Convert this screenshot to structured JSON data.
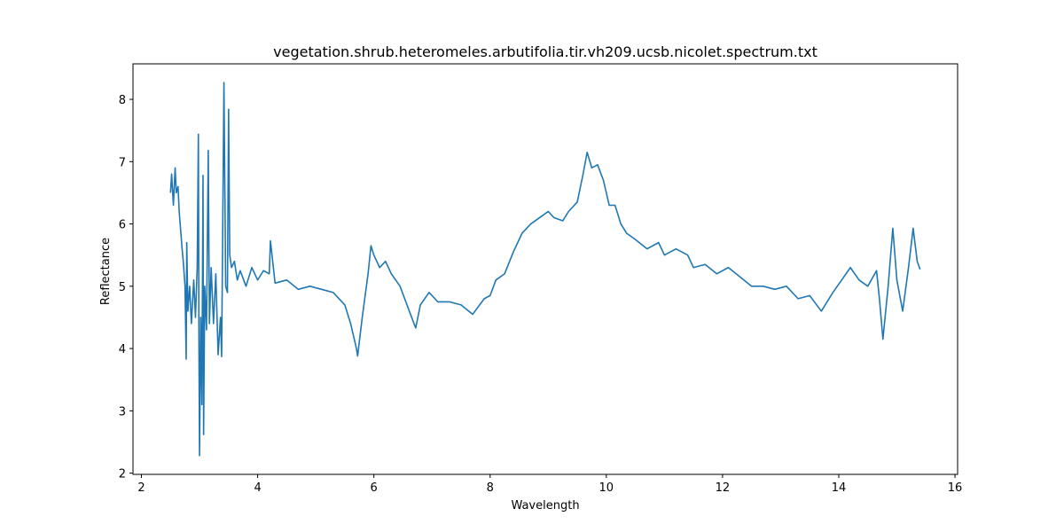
{
  "chart_data": {
    "type": "line",
    "title": "vegetation.shrub.heteromeles.arbutifolia.tir.vh209.ucsb.nicolet.spectrum.txt",
    "x_label": "Wavelength",
    "y_label": "Reflectance",
    "x": [
      2.5,
      2.52,
      2.55,
      2.58,
      2.6,
      2.63,
      2.65,
      2.7,
      2.72,
      2.75,
      2.77,
      2.78,
      2.8,
      2.83,
      2.86,
      2.9,
      2.93,
      2.96,
      2.98,
      2.99,
      3.0,
      3.02,
      3.04,
      3.06,
      3.07,
      3.09,
      3.12,
      3.15,
      3.17,
      3.2,
      3.24,
      3.28,
      3.32,
      3.36,
      3.38,
      3.42,
      3.45,
      3.48,
      3.5,
      3.52,
      3.55,
      3.6,
      3.65,
      3.7,
      3.8,
      3.9,
      4.0,
      4.1,
      4.2,
      4.22,
      4.3,
      4.5,
      4.7,
      4.9,
      5.1,
      5.3,
      5.5,
      5.6,
      5.7,
      5.72,
      5.8,
      5.9,
      5.95,
      6.0,
      6.1,
      6.2,
      6.3,
      6.45,
      6.55,
      6.65,
      6.72,
      6.8,
      6.95,
      7.1,
      7.3,
      7.5,
      7.7,
      7.9,
      8.0,
      8.1,
      8.25,
      8.4,
      8.55,
      8.7,
      8.85,
      9.0,
      9.1,
      9.25,
      9.35,
      9.5,
      9.6,
      9.67,
      9.75,
      9.85,
      9.95,
      10.05,
      10.15,
      10.25,
      10.35,
      10.5,
      10.7,
      10.9,
      11.0,
      11.2,
      11.4,
      11.5,
      11.7,
      11.9,
      12.1,
      12.3,
      12.5,
      12.7,
      12.9,
      13.1,
      13.3,
      13.5,
      13.7,
      13.9,
      14.05,
      14.2,
      14.35,
      14.5,
      14.65,
      14.7,
      14.76,
      14.85,
      14.93,
      15.0,
      15.1,
      15.2,
      15.28,
      15.35,
      15.4
    ],
    "series": [
      {
        "name": "Reflectance",
        "color": "#1f77b4",
        "values": [
          6.5,
          6.8,
          6.3,
          6.9,
          6.5,
          6.6,
          6.2,
          5.6,
          5.4,
          5.0,
          3.83,
          5.7,
          4.6,
          5.0,
          4.4,
          5.1,
          4.5,
          5.3,
          7.44,
          4.0,
          2.28,
          4.5,
          3.1,
          6.78,
          2.62,
          5.0,
          4.3,
          7.18,
          4.4,
          5.3,
          4.4,
          5.2,
          3.9,
          4.5,
          3.87,
          8.27,
          5.0,
          4.9,
          7.84,
          5.5,
          5.3,
          5.4,
          5.1,
          5.25,
          5.0,
          5.3,
          5.1,
          5.25,
          5.2,
          5.73,
          5.05,
          5.1,
          4.95,
          5.0,
          4.95,
          4.9,
          4.7,
          4.4,
          4.0,
          3.88,
          4.5,
          5.2,
          5.65,
          5.5,
          5.3,
          5.4,
          5.2,
          5.0,
          4.75,
          4.5,
          4.33,
          4.7,
          4.9,
          4.75,
          4.75,
          4.7,
          4.55,
          4.8,
          4.85,
          5.1,
          5.2,
          5.55,
          5.85,
          6.0,
          6.1,
          6.2,
          6.1,
          6.05,
          6.2,
          6.35,
          6.8,
          7.15,
          6.9,
          6.95,
          6.7,
          6.3,
          6.3,
          6.0,
          5.85,
          5.75,
          5.6,
          5.7,
          5.5,
          5.6,
          5.5,
          5.3,
          5.35,
          5.2,
          5.3,
          5.15,
          5.0,
          5.0,
          4.95,
          5.0,
          4.8,
          4.85,
          4.6,
          4.9,
          5.1,
          5.3,
          5.1,
          5.0,
          5.25,
          4.8,
          4.15,
          5.0,
          5.93,
          5.1,
          4.6,
          5.3,
          5.93,
          5.4,
          5.27
        ]
      }
    ],
    "xlim": [
      1.855,
      16.045
    ],
    "xticks": [
      2,
      4,
      6,
      8,
      10,
      12,
      14,
      16
    ],
    "ylim": [
      1.98,
      8.57
    ],
    "yticks": [
      2,
      3,
      4,
      5,
      6,
      7,
      8
    ]
  }
}
